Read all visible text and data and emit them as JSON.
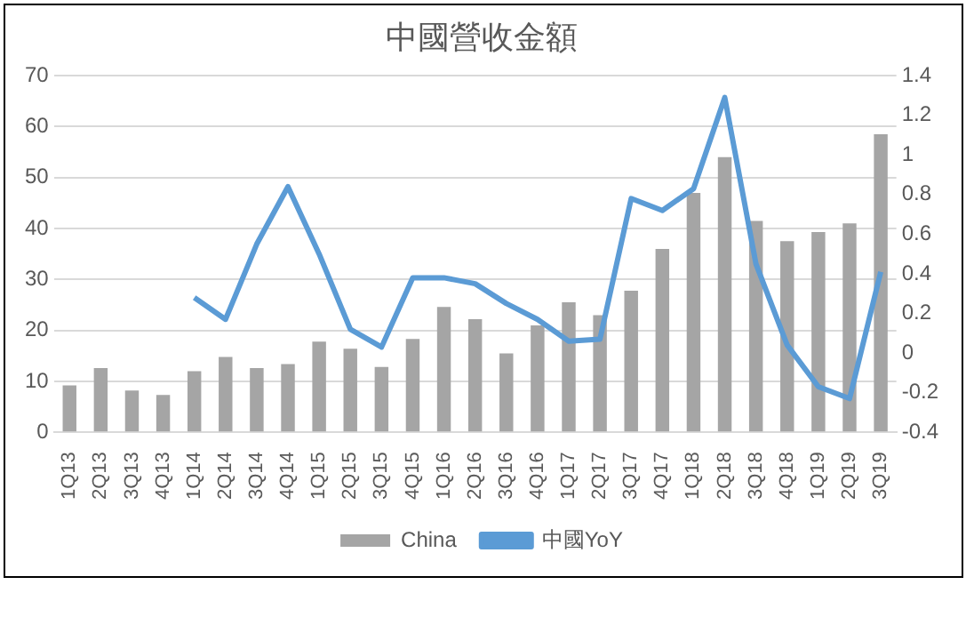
{
  "chart_data": {
    "type": "bar",
    "title": "中國營收金額",
    "categories": [
      "1Q13",
      "2Q13",
      "3Q13",
      "4Q13",
      "1Q14",
      "2Q14",
      "3Q14",
      "4Q14",
      "1Q15",
      "2Q15",
      "3Q15",
      "4Q15",
      "1Q16",
      "2Q16",
      "3Q16",
      "4Q16",
      "1Q17",
      "2Q17",
      "3Q17",
      "4Q17",
      "1Q18",
      "2Q18",
      "3Q18",
      "4Q18",
      "1Q19",
      "2Q19",
      "3Q19"
    ],
    "series": [
      {
        "name": "China",
        "color": "#a5a5a5",
        "values": [
          9.2,
          12.6,
          8.2,
          7.3,
          12,
          14.8,
          12.6,
          13.4,
          17.8,
          16.4,
          12.8,
          18.3,
          24.6,
          22.2,
          15.5,
          21,
          25.5,
          23,
          27.8,
          36,
          47,
          54,
          41.5,
          37.5,
          39.3,
          41,
          58.5
        ]
      },
      {
        "name": "中國YoY",
        "type": "line",
        "axis": "y2",
        "color": "#5b9bd5",
        "values": [
          null,
          null,
          null,
          null,
          0.28,
          0.17,
          0.55,
          0.84,
          0.5,
          0.12,
          0.03,
          0.38,
          0.38,
          0.35,
          0.25,
          0.17,
          0.06,
          0.07,
          0.78,
          0.72,
          0.83,
          1.29,
          0.45,
          0.04,
          -0.17,
          -0.23,
          0.41
        ]
      }
    ],
    "ylim": [
      0,
      70
    ],
    "yticks": [
      0,
      10,
      20,
      30,
      40,
      50,
      60,
      70
    ],
    "y2lim": [
      -0.4,
      1.4
    ],
    "y2ticks": [
      -0.4,
      -0.2,
      0,
      0.2,
      0.4,
      0.6,
      0.8,
      1,
      1.2,
      1.4
    ],
    "grid": "y",
    "legend": "bottom",
    "marker": "none"
  }
}
